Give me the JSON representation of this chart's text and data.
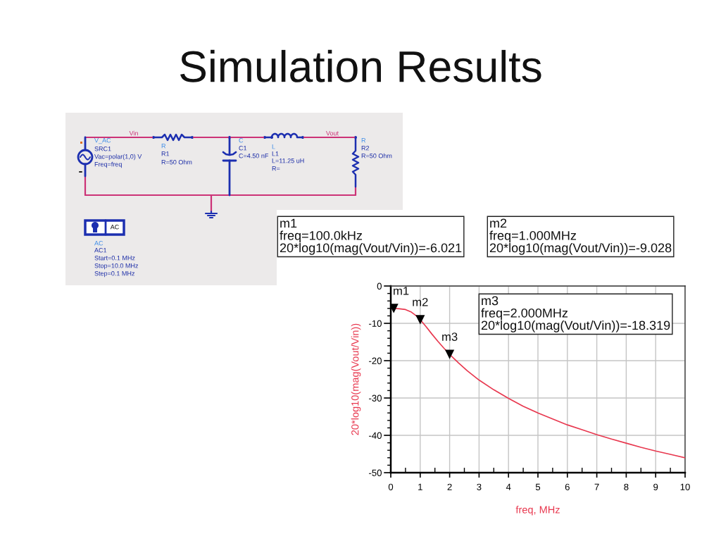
{
  "chart_data": [
    {
      "type": "other",
      "annotations": [
        "V_AC",
        "SRC1",
        "Vac=polar(1,0) V",
        "Freq=freq",
        "Vin",
        "R",
        "R1",
        "R=50 Ohm",
        "C",
        "C1",
        "C=4.50 nF",
        "L",
        "L1",
        "L=11.25 uH",
        "R=",
        "Vout",
        "R",
        "R2",
        "R=50 Ohm",
        "AC",
        "AC",
        "AC1",
        "Start=0.1 MHz",
        "Stop=10.0 MHz",
        "Step=0.1 MHz"
      ]
    },
    {
      "type": "line",
      "title": "Simulation Results",
      "xlabel": "freq, MHz",
      "ylabel": "20*log10(mag(Vout/Vin))",
      "xlim": [
        0,
        10
      ],
      "ylim": [
        -50,
        0
      ],
      "xticks": [
        0,
        1,
        2,
        3,
        4,
        5,
        6,
        7,
        8,
        9,
        10
      ],
      "yticks": [
        -50,
        -40,
        -30,
        -20,
        -10,
        0
      ],
      "grid": true,
      "series": [
        {
          "color": "#e8384f",
          "x": [
            0.1,
            0.3,
            0.5,
            0.7,
            0.9,
            1.0,
            1.2,
            1.4,
            1.6,
            1.8,
            2.0,
            2.3,
            2.6,
            3.0,
            3.5,
            4.0,
            4.5,
            5.0,
            5.5,
            6.0,
            6.5,
            7.0,
            7.5,
            8.0,
            8.5,
            9.0,
            9.5,
            10.0
          ],
          "values": [
            -6.0,
            -6.1,
            -6.3,
            -7.0,
            -8.2,
            -9.0,
            -10.9,
            -12.9,
            -14.8,
            -16.6,
            -18.3,
            -20.6,
            -22.7,
            -25.2,
            -27.8,
            -30.1,
            -32.2,
            -34.0,
            -35.6,
            -37.2,
            -38.5,
            -39.8,
            -41.0,
            -42.1,
            -43.2,
            -44.2,
            -45.1,
            -46.0
          ]
        },
        {
          "type": "scatter",
          "marker": "triangle",
          "color": "#000000",
          "x": [
            0.1,
            1.0,
            2.0
          ],
          "values": [
            -6.021,
            -9.028,
            -18.319
          ]
        }
      ],
      "annotations": [
        {
          "text": "m1",
          "x": 0.1,
          "y": -6.021
        },
        {
          "text": "m2",
          "x": 1.0,
          "y": -9.028
        },
        {
          "text": "m3",
          "x": 2.0,
          "y": -18.319
        },
        "m1\nfreq=100.0kHz\n20*log10(mag(Vout/Vin))=-6.021",
        "m2\nfreq=1.000MHz\n20*log10(mag(Vout/Vin))=-9.028",
        "m3\nfreq=2.000MHz\n20*log10(mag(Vout/Vin))=-18.319"
      ]
    }
  ]
}
